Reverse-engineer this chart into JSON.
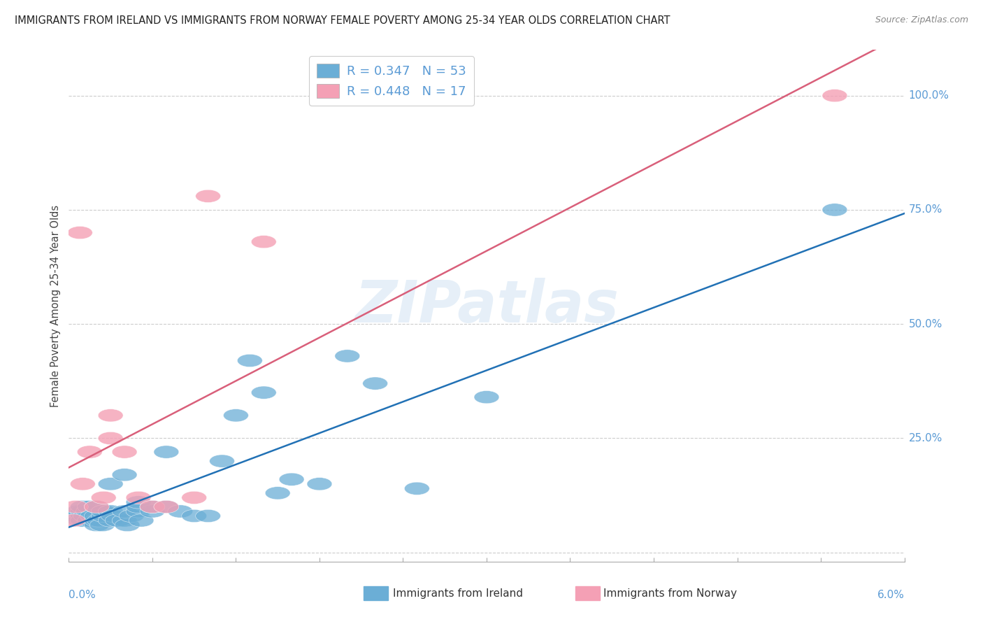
{
  "title": "IMMIGRANTS FROM IRELAND VS IMMIGRANTS FROM NORWAY FEMALE POVERTY AMONG 25-34 YEAR OLDS CORRELATION CHART",
  "source": "Source: ZipAtlas.com",
  "ylabel": "Female Poverty Among 25-34 Year Olds",
  "xlim": [
    0.0,
    0.06
  ],
  "ylim": [
    0.0,
    1.08
  ],
  "color_ireland": "#6baed6",
  "color_norway": "#f4a0b5",
  "trendline_ireland": "#2171b5",
  "trendline_norway": "#d95f7a",
  "watermark": "ZIPatlas",
  "ireland_R": 0.347,
  "ireland_N": 53,
  "norway_R": 0.448,
  "norway_N": 17,
  "ireland_x": [
    0.0005,
    0.0007,
    0.0008,
    0.001,
    0.001,
    0.001,
    0.001,
    0.0012,
    0.0014,
    0.0015,
    0.0015,
    0.0017,
    0.002,
    0.002,
    0.002,
    0.002,
    0.0022,
    0.0024,
    0.0025,
    0.0025,
    0.003,
    0.003,
    0.003,
    0.0032,
    0.0035,
    0.004,
    0.004,
    0.004,
    0.0042,
    0.0045,
    0.005,
    0.005,
    0.005,
    0.0052,
    0.006,
    0.006,
    0.007,
    0.007,
    0.008,
    0.009,
    0.01,
    0.011,
    0.012,
    0.013,
    0.014,
    0.015,
    0.016,
    0.018,
    0.02,
    0.022,
    0.025,
    0.03,
    0.055
  ],
  "ireland_y": [
    0.08,
    0.09,
    0.07,
    0.08,
    0.09,
    0.1,
    0.07,
    0.08,
    0.09,
    0.07,
    0.1,
    0.08,
    0.06,
    0.07,
    0.08,
    0.1,
    0.07,
    0.06,
    0.08,
    0.09,
    0.07,
    0.09,
    0.15,
    0.08,
    0.07,
    0.07,
    0.09,
    0.17,
    0.06,
    0.08,
    0.09,
    0.1,
    0.11,
    0.07,
    0.09,
    0.1,
    0.1,
    0.22,
    0.09,
    0.08,
    0.08,
    0.2,
    0.3,
    0.42,
    0.35,
    0.13,
    0.16,
    0.15,
    0.43,
    0.37,
    0.14,
    0.34,
    0.75
  ],
  "norway_x": [
    0.0003,
    0.0005,
    0.001,
    0.0015,
    0.002,
    0.0025,
    0.003,
    0.003,
    0.004,
    0.005,
    0.006,
    0.007,
    0.009,
    0.01,
    0.014,
    0.055,
    0.0008
  ],
  "norway_y": [
    0.07,
    0.1,
    0.15,
    0.22,
    0.1,
    0.12,
    0.25,
    0.3,
    0.22,
    0.12,
    0.1,
    0.1,
    0.12,
    0.78,
    0.68,
    1.0,
    0.7
  ]
}
